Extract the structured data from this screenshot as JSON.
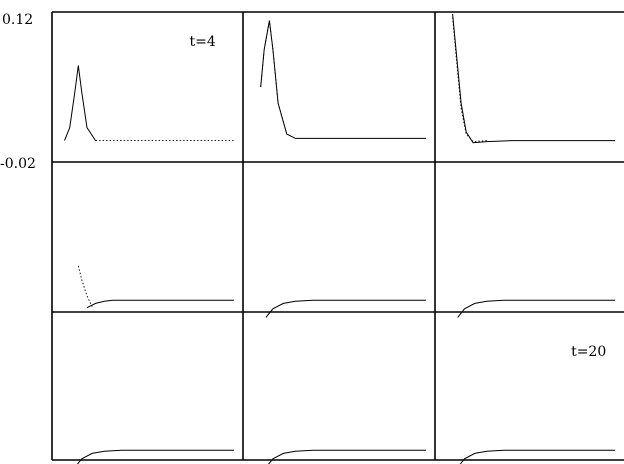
{
  "chart_data": {
    "type": "line",
    "layout": "3x3 grid of small-multiple panels",
    "shared_y_axis": {
      "ylim": [
        -0.02,
        0.12
      ],
      "tick_labels": [
        "0.12",
        "-0.02"
      ]
    },
    "panel_labels": [
      "t=4",
      "t=20"
    ],
    "panels": [
      {
        "row": 1,
        "col": 1,
        "label": "t=4",
        "series": [
          {
            "style": "solid",
            "x": [
              0.02,
              0.05,
              0.08,
              0.1,
              0.12,
              0.15,
              0.2
            ],
            "y": [
              0.0,
              0.012,
              0.045,
              0.07,
              0.045,
              0.012,
              0.0
            ]
          },
          {
            "style": "dotted",
            "x": [
              0.2,
              0.3,
              0.5,
              0.7,
              0.9,
              1.0
            ],
            "y": [
              0.0,
              0.0,
              0.0,
              0.0,
              0.0,
              0.0
            ]
          }
        ]
      },
      {
        "row": 1,
        "col": 2,
        "series": [
          {
            "style": "solid",
            "x": [
              0.05,
              0.07,
              0.1,
              0.12,
              0.15,
              0.2,
              0.25,
              0.3,
              0.5,
              0.7,
              1.0
            ],
            "y": [
              0.05,
              0.085,
              0.112,
              0.085,
              0.035,
              0.006,
              0.002,
              0.002,
              0.002,
              0.002,
              0.002
            ]
          },
          {
            "style": "dotted",
            "x": [
              0.05,
              0.07,
              0.1,
              0.12,
              0.15,
              0.2
            ],
            "y": [
              0.05,
              0.085,
              0.112,
              0.085,
              0.035,
              0.006
            ]
          }
        ]
      },
      {
        "row": 1,
        "col": 3,
        "series": [
          {
            "style": "solid",
            "x": [
              0.05,
              0.07,
              0.1,
              0.13,
              0.17,
              0.25,
              0.4,
              0.6,
              1.0
            ],
            "y": [
              0.118,
              0.085,
              0.035,
              0.008,
              -0.002,
              -0.001,
              0.0,
              0.0,
              0.0
            ]
          },
          {
            "style": "dotted",
            "x": [
              0.05,
              0.07,
              0.1,
              0.13,
              0.17,
              0.25
            ],
            "y": [
              0.115,
              0.08,
              0.03,
              0.006,
              -0.001,
              0.0
            ]
          }
        ]
      },
      {
        "row": 2,
        "col": 1,
        "series": [
          {
            "style": "dotted",
            "x": [
              0.1,
              0.12,
              0.15,
              0.18
            ],
            "y": [
              0.023,
              0.01,
              -0.005,
              -0.015
            ]
          },
          {
            "style": "solid",
            "x": [
              0.15,
              0.2,
              0.25,
              0.3,
              0.4,
              0.6,
              0.8,
              1.0
            ],
            "y": [
              -0.016,
              -0.012,
              -0.01,
              -0.009,
              -0.009,
              -0.009,
              -0.009,
              -0.009
            ]
          }
        ]
      },
      {
        "row": 2,
        "col": 2,
        "series": [
          {
            "style": "solid",
            "x": [
              0.08,
              0.12,
              0.18,
              0.25,
              0.35,
              0.5,
              0.7,
              1.0
            ],
            "y": [
              -0.025,
              -0.017,
              -0.012,
              -0.01,
              -0.009,
              -0.009,
              -0.009,
              -0.009
            ]
          }
        ]
      },
      {
        "row": 2,
        "col": 3,
        "series": [
          {
            "style": "solid",
            "x": [
              0.08,
              0.12,
              0.18,
              0.25,
              0.35,
              0.5,
              0.7,
              1.0
            ],
            "y": [
              -0.025,
              -0.017,
              -0.012,
              -0.01,
              -0.009,
              -0.009,
              -0.009,
              -0.009
            ]
          }
        ]
      },
      {
        "row": 3,
        "col": 1,
        "series": [
          {
            "style": "solid",
            "x": [
              0.08,
              0.12,
              0.18,
              0.25,
              0.35,
              0.5,
              0.7,
              1.0
            ],
            "y": [
              -0.025,
              -0.017,
              -0.012,
              -0.01,
              -0.009,
              -0.009,
              -0.009,
              -0.009
            ]
          }
        ]
      },
      {
        "row": 3,
        "col": 2,
        "series": [
          {
            "style": "solid",
            "x": [
              0.08,
              0.12,
              0.18,
              0.25,
              0.35,
              0.5,
              0.7,
              1.0
            ],
            "y": [
              -0.025,
              -0.017,
              -0.012,
              -0.01,
              -0.009,
              -0.009,
              -0.009,
              -0.009
            ]
          }
        ]
      },
      {
        "row": 3,
        "col": 3,
        "label": "t=20",
        "series": [
          {
            "style": "solid",
            "x": [
              0.08,
              0.12,
              0.18,
              0.25,
              0.35,
              0.5,
              0.7,
              1.0
            ],
            "y": [
              -0.025,
              -0.017,
              -0.012,
              -0.01,
              -0.009,
              -0.009,
              -0.009,
              -0.009
            ]
          }
        ]
      }
    ]
  }
}
